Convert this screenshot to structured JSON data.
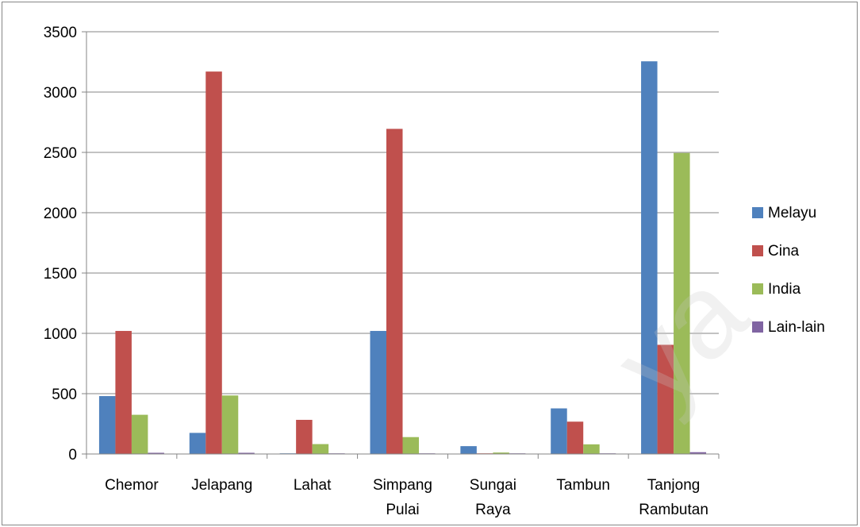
{
  "chart_data": {
    "type": "bar",
    "categories": [
      [
        "Chemor"
      ],
      [
        "Jelapang"
      ],
      [
        "Lahat"
      ],
      [
        "Simpang",
        "Pulai"
      ],
      [
        "Sungai",
        "Raya"
      ],
      [
        "Tambun"
      ],
      [
        "Tanjong",
        "Rambutan"
      ]
    ],
    "series": [
      {
        "name": "Melayu",
        "color": "#4f81bd",
        "values": [
          480,
          175,
          5,
          1020,
          65,
          378,
          3255
        ]
      },
      {
        "name": "Cina",
        "color": "#c0504d",
        "values": [
          1020,
          3170,
          283,
          2695,
          3,
          268,
          905
        ]
      },
      {
        "name": "India",
        "color": "#9bbb59",
        "values": [
          325,
          485,
          82,
          140,
          12,
          80,
          2495
        ]
      },
      {
        "name": "Lain-lain",
        "color": "#8064a2",
        "values": [
          10,
          10,
          3,
          3,
          2,
          3,
          15
        ]
      }
    ],
    "ylim": [
      0,
      3500
    ],
    "yticks": [
      0,
      500,
      1000,
      1500,
      2000,
      2500,
      3000,
      3500
    ],
    "grid": true,
    "legend": "right"
  },
  "watermark": "ya"
}
